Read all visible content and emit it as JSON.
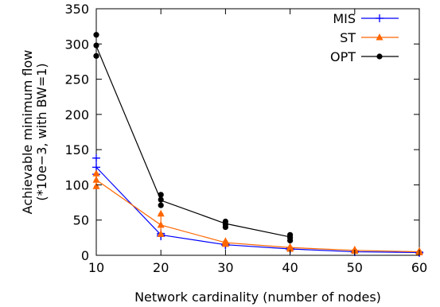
{
  "chart_data": {
    "type": "line",
    "xlabel": "Network cardinality (number of nodes)",
    "ylabel_lines": [
      "Achievable minimum flow",
      "(*10e−3, with BW=1)"
    ],
    "xlim": [
      10,
      60
    ],
    "ylim": [
      0,
      350
    ],
    "x_ticks": [
      10,
      20,
      30,
      40,
      50,
      60
    ],
    "y_ticks": [
      0,
      50,
      100,
      150,
      200,
      250,
      300,
      350
    ],
    "legend_position": "top-right",
    "series": [
      {
        "name": "MIS",
        "color": "#0000ff",
        "marker": "plus",
        "x": [
          10,
          20,
          30,
          40,
          50,
          60
        ],
        "y": [
          125,
          29,
          15,
          9,
          5,
          4
        ],
        "error_low": [
          115,
          27,
          14,
          8,
          4.5,
          3.5
        ],
        "error_high": [
          138,
          31,
          16,
          10,
          5.5,
          4.5
        ]
      },
      {
        "name": "ST",
        "color": "#ff6600",
        "marker": "triangle",
        "x": [
          10,
          20,
          30,
          40,
          50,
          60
        ],
        "y": [
          107,
          43,
          18,
          11,
          7,
          5
        ],
        "error_low": [
          98,
          30,
          16,
          9,
          6,
          4
        ],
        "error_high": [
          116,
          59,
          20,
          12,
          8,
          6
        ]
      },
      {
        "name": "OPT",
        "color": "#000000",
        "marker": "circle",
        "x": [
          10,
          20,
          30,
          40
        ],
        "y": [
          297,
          78,
          45,
          26
        ],
        "points": [
          [
            10,
            283
          ],
          [
            10,
            298
          ],
          [
            10,
            313
          ],
          [
            20,
            71
          ],
          [
            20,
            79
          ],
          [
            20,
            86
          ],
          [
            30,
            40
          ],
          [
            30,
            44
          ],
          [
            30,
            48
          ],
          [
            40,
            21
          ],
          [
            40,
            25
          ],
          [
            40,
            29
          ]
        ]
      }
    ]
  }
}
